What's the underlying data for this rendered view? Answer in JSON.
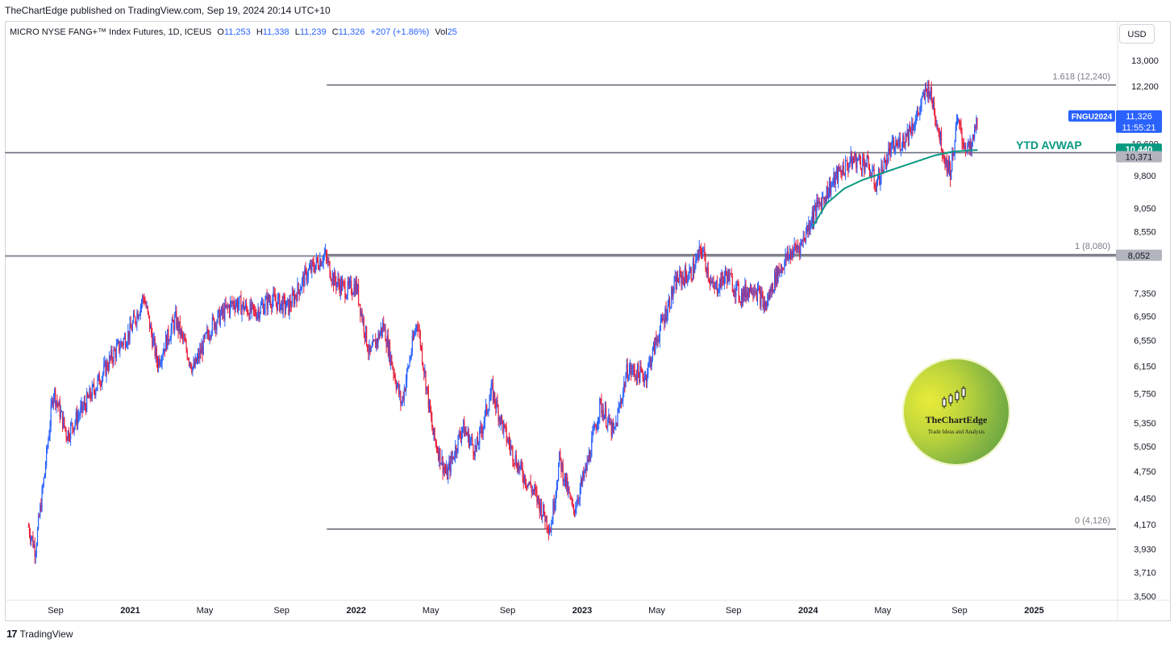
{
  "header": {
    "publisher": "TheChartEdge published on TradingView.com, Sep 19, 2024 20:14 UTC+10",
    "symbol": "MICRO NYSE FANG+™ Index Futures, 1D, ICEUS",
    "ohlc": [
      {
        "k": "O",
        "v": "11,253"
      },
      {
        "k": "H",
        "v": "11,338"
      },
      {
        "k": "L",
        "v": "11,239"
      },
      {
        "k": "C",
        "v": "11,326"
      },
      {
        "k": "",
        "v": "+207 (+1.86%)"
      },
      {
        "k": "Vol",
        "v": "25"
      }
    ],
    "currency": "USD"
  },
  "footer": {
    "brand": "TradingView",
    "logo_mark": "17"
  },
  "watermark": {
    "title": "TheChartEdge",
    "subtitle": "Trade Ideas and Analysis"
  },
  "colors": {
    "up": "#2962ff",
    "down": "#e91e3a",
    "avwap": "#089981",
    "ticker": "#2962ff",
    "grey_tag": "#b2b5be"
  },
  "chart_data": {
    "type": "candlestick",
    "y_scale": "log",
    "ylim": [
      3500,
      13000
    ],
    "y_ticks": [
      3500,
      3710,
      3930,
      4170,
      4450,
      4750,
      5050,
      5350,
      5750,
      6150,
      6550,
      6950,
      7350,
      8550,
      9050,
      9800,
      10600,
      12200,
      13000
    ],
    "y_tick_labels": [
      "3,500",
      "3,710",
      "3,930",
      "4,170",
      "4,450",
      "4,750",
      "5,050",
      "5,350",
      "5,750",
      "6,150",
      "6,550",
      "6,950",
      "7,350",
      "8,550",
      "9,050",
      "9,800",
      "10,600",
      "12,200",
      "13,000"
    ],
    "x_ticks": [
      {
        "label": "Sep",
        "t": 2020.67,
        "bold": false
      },
      {
        "label": "2021",
        "t": 2021.0,
        "bold": true
      },
      {
        "label": "May",
        "t": 2021.33,
        "bold": false
      },
      {
        "label": "Sep",
        "t": 2021.67,
        "bold": false
      },
      {
        "label": "2022",
        "t": 2022.0,
        "bold": true
      },
      {
        "label": "May",
        "t": 2022.33,
        "bold": false
      },
      {
        "label": "Sep",
        "t": 2022.67,
        "bold": false
      },
      {
        "label": "2023",
        "t": 2023.0,
        "bold": true
      },
      {
        "label": "May",
        "t": 2023.33,
        "bold": false
      },
      {
        "label": "Sep",
        "t": 2023.67,
        "bold": false
      },
      {
        "label": "2024",
        "t": 2024.0,
        "bold": true
      },
      {
        "label": "May",
        "t": 2024.33,
        "bold": false
      },
      {
        "label": "Sep",
        "t": 2024.67,
        "bold": false
      },
      {
        "label": "2025",
        "t": 2025.0,
        "bold": true
      }
    ],
    "price_path": [
      [
        2020.55,
        4150
      ],
      [
        2020.58,
        3920
      ],
      [
        2020.62,
        4700
      ],
      [
        2020.66,
        5800
      ],
      [
        2020.72,
        5200
      ],
      [
        2020.82,
        5700
      ],
      [
        2020.92,
        6300
      ],
      [
        2021.0,
        6700
      ],
      [
        2021.06,
        7300
      ],
      [
        2021.12,
        6200
      ],
      [
        2021.2,
        6900
      ],
      [
        2021.28,
        6100
      ],
      [
        2021.36,
        6800
      ],
      [
        2021.46,
        7200
      ],
      [
        2021.55,
        7000
      ],
      [
        2021.62,
        7250
      ],
      [
        2021.7,
        7100
      ],
      [
        2021.78,
        7700
      ],
      [
        2021.86,
        8080
      ],
      [
        2021.9,
        7600
      ],
      [
        2021.96,
        7400
      ],
      [
        2022.0,
        7500
      ],
      [
        2022.06,
        6300
      ],
      [
        2022.12,
        6800
      ],
      [
        2022.2,
        5600
      ],
      [
        2022.27,
        6900
      ],
      [
        2022.34,
        5200
      ],
      [
        2022.4,
        4700
      ],
      [
        2022.47,
        5300
      ],
      [
        2022.53,
        5000
      ],
      [
        2022.6,
        5800
      ],
      [
        2022.66,
        5200
      ],
      [
        2022.72,
        4800
      ],
      [
        2022.79,
        4500
      ],
      [
        2022.86,
        4130
      ],
      [
        2022.9,
        4900
      ],
      [
        2022.96,
        4300
      ],
      [
        2023.02,
        4800
      ],
      [
        2023.08,
        5600
      ],
      [
        2023.14,
        5200
      ],
      [
        2023.2,
        6100
      ],
      [
        2023.28,
        6000
      ],
      [
        2023.35,
        6800
      ],
      [
        2023.42,
        7600
      ],
      [
        2023.48,
        7700
      ],
      [
        2023.53,
        8200
      ],
      [
        2023.58,
        7400
      ],
      [
        2023.64,
        7700
      ],
      [
        2023.7,
        7300
      ],
      [
        2023.76,
        7500
      ],
      [
        2023.81,
        7100
      ],
      [
        2023.86,
        7700
      ],
      [
        2023.92,
        8100
      ],
      [
        2023.97,
        8300
      ],
      [
        2024.02,
        8900
      ],
      [
        2024.08,
        9400
      ],
      [
        2024.14,
        9900
      ],
      [
        2024.2,
        10200
      ],
      [
        2024.26,
        10100
      ],
      [
        2024.3,
        9600
      ],
      [
        2024.36,
        10400
      ],
      [
        2024.42,
        10700
      ],
      [
        2024.48,
        11300
      ],
      [
        2024.53,
        12200
      ],
      [
        2024.56,
        11500
      ],
      [
        2024.6,
        10300
      ],
      [
        2024.63,
        9900
      ],
      [
        2024.66,
        11200
      ],
      [
        2024.69,
        10600
      ],
      [
        2024.72,
        10400
      ],
      [
        2024.75,
        11326
      ]
    ],
    "avwap": {
      "label": "YTD AVWAP",
      "points": [
        [
          2024.02,
          8650
        ],
        [
          2024.08,
          9150
        ],
        [
          2024.16,
          9500
        ],
        [
          2024.24,
          9700
        ],
        [
          2024.32,
          9850
        ],
        [
          2024.4,
          10000
        ],
        [
          2024.48,
          10150
        ],
        [
          2024.56,
          10300
        ],
        [
          2024.64,
          10400
        ],
        [
          2024.72,
          10430
        ],
        [
          2024.75,
          10440
        ]
      ]
    },
    "fib_levels": [
      {
        "label": "1.618 (12,240)",
        "value": 12240
      },
      {
        "label": "1 (8,080)",
        "value": 8080
      },
      {
        "label": "0 (4,126)",
        "value": 4126
      }
    ],
    "fib_start": 2021.87,
    "fib_end": 2025.05,
    "hlines_full": [
      10371,
      8052
    ],
    "price_tags": [
      {
        "label": "FNGU2024",
        "value": 11326,
        "style": "ticker-name"
      },
      {
        "label": "11,326",
        "value": 11326,
        "style": "last"
      },
      {
        "label": "11:55:21",
        "value": 11326,
        "style": "countdown"
      },
      {
        "label": "10,440",
        "value": 10440,
        "style": "avwap"
      },
      {
        "label": "10,371",
        "value": 10371,
        "style": "grey"
      },
      {
        "label": "8,052",
        "value": 8052,
        "style": "grey"
      }
    ]
  }
}
